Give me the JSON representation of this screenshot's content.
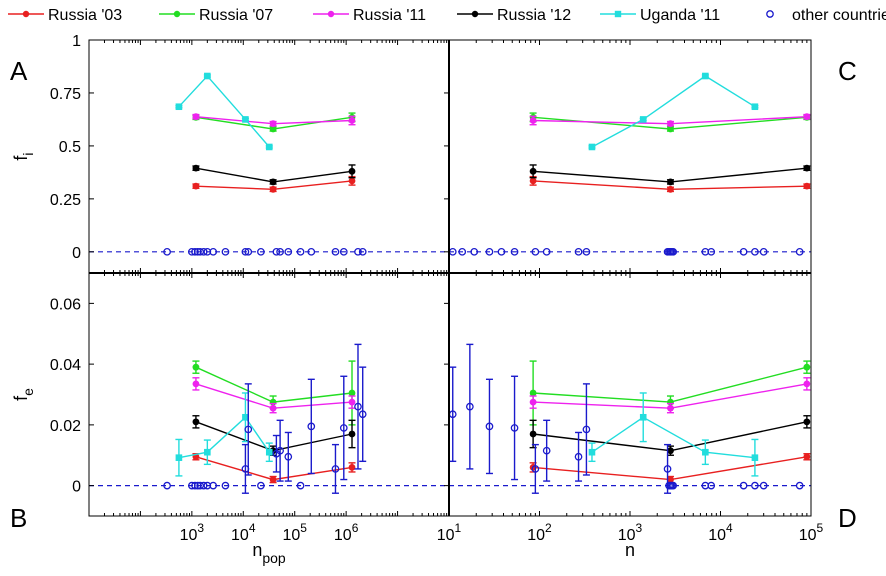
{
  "chart_data": {
    "type": "scatter",
    "legend_position": "top",
    "legend": [
      {
        "key": "russia03",
        "label": "Russia '03",
        "color": "#e82020",
        "marker": "dot",
        "line": true
      },
      {
        "key": "russia07",
        "label": "Russia '07",
        "color": "#22dd22",
        "marker": "dot",
        "line": true
      },
      {
        "key": "russia11",
        "label": "Russia '11",
        "color": "#ee22ee",
        "marker": "dot",
        "line": true
      },
      {
        "key": "russia12",
        "label": "Russia '12",
        "color": "#000000",
        "marker": "dot",
        "line": true
      },
      {
        "key": "uganda11",
        "label": "Uganda '11",
        "color": "#22dddd",
        "marker": "square",
        "line": true
      },
      {
        "key": "other",
        "label": "other countries",
        "color": "#1a1acc",
        "marker": "circle",
        "line": false
      }
    ],
    "panels": [
      {
        "id": "A",
        "letter": "A",
        "ylabel": "f",
        "ylabel_sub": "i",
        "xscale": "log",
        "xlim": [
          10,
          100000000
        ],
        "ylim": [
          -0.1,
          1
        ],
        "yticks": [
          0,
          0.25,
          0.5,
          0.75,
          1
        ],
        "ytick_labels": [
          "0",
          "0.25",
          "0.5",
          "0.75",
          "1"
        ],
        "xticks": [],
        "zero_line": true,
        "series": [
          {
            "key": "russia03",
            "x": [
              1200,
              38000,
              1300000
            ],
            "y": [
              0.31,
              0.295,
              0.335
            ],
            "err": [
              0.01,
              0.01,
              0.02
            ]
          },
          {
            "key": "russia07",
            "x": [
              1200,
              38000,
              1300000
            ],
            "y": [
              0.635,
              0.58,
              0.635
            ],
            "err": [
              0.01,
              0.01,
              0.02
            ]
          },
          {
            "key": "russia11",
            "x": [
              1200,
              38000,
              1300000
            ],
            "y": [
              0.638,
              0.605,
              0.62
            ],
            "err": [
              0.01,
              0.01,
              0.02
            ]
          },
          {
            "key": "russia12",
            "x": [
              1200,
              38000,
              1300000
            ],
            "y": [
              0.395,
              0.33,
              0.38
            ],
            "err": [
              0.01,
              0.01,
              0.03
            ]
          },
          {
            "key": "uganda11",
            "x": [
              560,
              2000,
              11000,
              32000
            ],
            "y": [
              0.685,
              0.83,
              0.625,
              0.495
            ],
            "err": [
              0.005,
              0.005,
              0.005,
              0.005
            ]
          },
          {
            "key": "other",
            "x": [
              330,
              1000,
              1150,
              1300,
              1450,
              1700,
              2000,
              2600,
              4500,
              11000,
              12500,
              22000,
              44000,
              52000,
              75000,
              130000,
              210000,
              620000,
              900000,
              1700000,
              2100000
            ],
            "y": [
              0,
              0,
              0,
              0,
              0,
              0,
              0,
              0,
              0,
              0,
              0,
              0,
              0,
              0,
              0,
              0,
              0,
              0,
              0,
              0,
              0
            ]
          }
        ]
      },
      {
        "id": "B",
        "letter": "B",
        "ylabel": "f",
        "ylabel_sub": "e",
        "xscale": "log",
        "xlim": [
          10,
          100000000
        ],
        "ylim": [
          -0.01,
          0.07
        ],
        "yticks": [
          0,
          0.02,
          0.04,
          0.06
        ],
        "ytick_labels": [
          "0",
          "0.02",
          "0.04",
          "0.06"
        ],
        "xticks": [
          1000,
          10000,
          100000,
          1000000
        ],
        "xtick_exponents": [
          "3",
          "4",
          "5",
          "6"
        ],
        "xlabel": "n",
        "xlabel_sub": "pop",
        "zero_line": true,
        "series": [
          {
            "key": "russia03",
            "x": [
              1200,
              38000,
              1300000
            ],
            "y": [
              0.0095,
              0.002,
              0.006
            ],
            "err": [
              0.001,
              0.001,
              0.0015
            ]
          },
          {
            "key": "russia07",
            "x": [
              1200,
              38000,
              1300000
            ],
            "y": [
              0.039,
              0.0275,
              0.0305
            ],
            "err": [
              0.002,
              0.002,
              0.0105
            ]
          },
          {
            "key": "russia11",
            "x": [
              1200,
              38000,
              1300000
            ],
            "y": [
              0.0335,
              0.0255,
              0.0275
            ],
            "err": [
              0.002,
              0.0015,
              0.002
            ]
          },
          {
            "key": "russia12",
            "x": [
              1200,
              38000,
              1300000
            ],
            "y": [
              0.021,
              0.0115,
              0.017
            ],
            "err": [
              0.002,
              0.0015,
              0.0045
            ]
          },
          {
            "key": "uganda11",
            "x": [
              560,
              2000,
              11000,
              32000
            ],
            "y": [
              0.0092,
              0.011,
              0.0225,
              0.011
            ],
            "err": [
              0.006,
              0.004,
              0.008,
              0.003
            ]
          },
          {
            "key": "other",
            "x": [
              330,
              1000,
              1150,
              1300,
              1450,
              1700,
              2000,
              2600,
              4500,
              11000,
              12500,
              22000,
              44000,
              52000,
              75000,
              130000,
              210000,
              620000,
              900000,
              1700000,
              2100000
            ],
            "y": [
              0,
              0,
              0,
              0,
              0,
              0,
              0,
              0,
              0,
              0.0055,
              0.0185,
              0,
              0.0105,
              0.0115,
              0.0095,
              0,
              0.0195,
              0.0055,
              0.019,
              0.026,
              0.0235
            ],
            "err": [
              0,
              0,
              0,
              0,
              0,
              0,
              0,
              0,
              0,
              0.008,
              0.015,
              0,
              0.006,
              0.01,
              0.008,
              0,
              0.0155,
              0.008,
              0.017,
              0.0205,
              0.0155
            ]
          }
        ]
      },
      {
        "id": "C",
        "letter": "C",
        "xscale": "log",
        "xlim": [
          10,
          100000
        ],
        "ylim": [
          -0.1,
          1
        ],
        "yticks": [],
        "xticks": [],
        "zero_line": true,
        "series": [
          {
            "key": "russia03",
            "x": [
              85,
              2800,
              90000
            ],
            "y": [
              0.335,
              0.295,
              0.31
            ],
            "err": [
              0.02,
              0.01,
              0.01
            ]
          },
          {
            "key": "russia07",
            "x": [
              85,
              2800,
              90000
            ],
            "y": [
              0.635,
              0.58,
              0.635
            ],
            "err": [
              0.02,
              0.01,
              0.01
            ]
          },
          {
            "key": "russia11",
            "x": [
              85,
              2800,
              90000
            ],
            "y": [
              0.62,
              0.605,
              0.638
            ],
            "err": [
              0.02,
              0.01,
              0.01
            ]
          },
          {
            "key": "russia12",
            "x": [
              85,
              2800,
              90000
            ],
            "y": [
              0.38,
              0.33,
              0.395
            ],
            "err": [
              0.03,
              0.01,
              0.01
            ]
          },
          {
            "key": "uganda11",
            "x": [
              380,
              1400,
              6800,
              24000
            ],
            "y": [
              0.495,
              0.625,
              0.83,
              0.685
            ],
            "err": [
              0.005,
              0.005,
              0.005,
              0.005
            ]
          },
          {
            "key": "other",
            "x": [
              11,
              14,
              19,
              28,
              38,
              53,
              90,
              120,
              270,
              330,
              2600,
              2700,
              2800,
              2900,
              3000,
              6800,
              7900,
              18000,
              24000,
              30000,
              75000
            ],
            "y": [
              0,
              0,
              0,
              0,
              0,
              0,
              0,
              0,
              0,
              0,
              0,
              0,
              0,
              0,
              0,
              0,
              0,
              0,
              0,
              0,
              0
            ]
          }
        ]
      },
      {
        "id": "D",
        "letter": "D",
        "xscale": "log",
        "xlim": [
          10,
          100000
        ],
        "ylim": [
          -0.01,
          0.07
        ],
        "yticks": [],
        "xticks": [
          10,
          100,
          1000,
          10000,
          100000
        ],
        "xtick_exponents": [
          "1",
          "2",
          "3",
          "4",
          "5"
        ],
        "xlabel": "n",
        "xlabel_sub": "",
        "zero_line": true,
        "series": [
          {
            "key": "russia03",
            "x": [
              85,
              2800,
              90000
            ],
            "y": [
              0.006,
              0.002,
              0.0095
            ],
            "err": [
              0.0015,
              0.001,
              0.001
            ]
          },
          {
            "key": "russia07",
            "x": [
              85,
              2800,
              90000
            ],
            "y": [
              0.0305,
              0.0275,
              0.039
            ],
            "err": [
              0.0105,
              0.002,
              0.002
            ]
          },
          {
            "key": "russia11",
            "x": [
              85,
              2800,
              90000
            ],
            "y": [
              0.0275,
              0.0255,
              0.0335
            ],
            "err": [
              0.002,
              0.0015,
              0.002
            ]
          },
          {
            "key": "russia12",
            "x": [
              85,
              2800,
              90000
            ],
            "y": [
              0.017,
              0.0115,
              0.021
            ],
            "err": [
              0.0045,
              0.0015,
              0.002
            ]
          },
          {
            "key": "uganda11",
            "x": [
              380,
              1400,
              6800,
              24000
            ],
            "y": [
              0.011,
              0.0225,
              0.011,
              0.0092
            ],
            "err": [
              0.003,
              0.008,
              0.004,
              0.006
            ]
          },
          {
            "key": "other",
            "x": [
              11,
              17,
              28,
              53,
              90,
              120,
              270,
              330,
              2600,
              2700,
              2800,
              2900,
              3000,
              6800,
              7900,
              18000,
              24000,
              30000,
              75000
            ],
            "y": [
              0.0235,
              0.026,
              0.0195,
              0.019,
              0.0055,
              0.0115,
              0.0095,
              0.0185,
              0.0055,
              0,
              0,
              0,
              0,
              0,
              0,
              0,
              0,
              0,
              0
            ],
            "err": [
              0.0155,
              0.0205,
              0.0155,
              0.017,
              0.008,
              0.01,
              0.008,
              0.015,
              0.008,
              0,
              0,
              0,
              0,
              0,
              0,
              0,
              0,
              0,
              0
            ]
          }
        ]
      }
    ]
  }
}
